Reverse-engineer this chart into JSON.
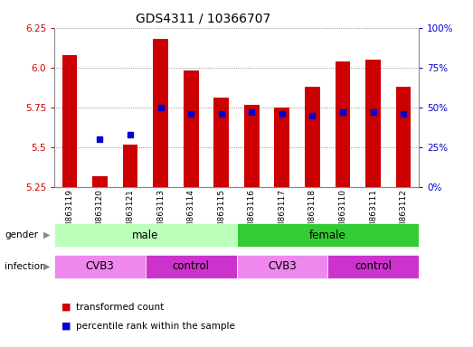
{
  "title": "GDS4311 / 10366707",
  "samples": [
    "GSM863119",
    "GSM863120",
    "GSM863121",
    "GSM863113",
    "GSM863114",
    "GSM863115",
    "GSM863116",
    "GSM863117",
    "GSM863118",
    "GSM863110",
    "GSM863111",
    "GSM863112"
  ],
  "transformed_counts": [
    6.08,
    5.32,
    5.52,
    6.18,
    5.98,
    5.81,
    5.77,
    5.75,
    5.88,
    6.04,
    6.05,
    5.88
  ],
  "percentile_ranks": [
    null,
    30,
    33,
    50,
    46,
    46,
    47,
    46,
    45,
    47,
    47,
    46
  ],
  "ylim_left": [
    5.25,
    6.25
  ],
  "ylim_right": [
    0,
    100
  ],
  "yticks_left": [
    5.25,
    5.5,
    5.75,
    6.0,
    6.25
  ],
  "yticks_right": [
    0,
    25,
    50,
    75,
    100
  ],
  "ytick_labels_right": [
    "0%",
    "25%",
    "50%",
    "75%",
    "100%"
  ],
  "bar_color": "#cc0000",
  "dot_color": "#0000cc",
  "bar_bottom": 5.25,
  "legend_items": [
    {
      "label": "transformed count",
      "color": "#cc0000"
    },
    {
      "label": "percentile rank within the sample",
      "color": "#0000cc"
    }
  ],
  "grid_color": "#555555",
  "axis_label_color_left": "#cc0000",
  "axis_label_color_right": "#0000cc",
  "background_color": "#ffffff",
  "gender_male_color": "#bbffbb",
  "gender_female_color": "#33cc33",
  "infection_cvb3_color": "#ee88ee",
  "infection_control_color": "#cc33cc"
}
